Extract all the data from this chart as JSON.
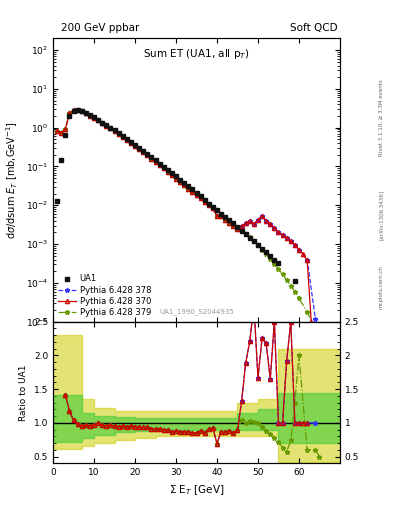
{
  "title_left": "200 GeV ppbar",
  "title_right": "Soft QCD",
  "plot_title": "Sum ET (UA1, all p_{T})",
  "ylabel_main": "dσ/dsum E_T [mb,GeV⁻¹]",
  "ylabel_ratio": "Ratio to UA1",
  "xlabel": "Σ E_T [GeV]",
  "rivet_label": "Rivet 3.1.10, ≥ 3.3M events",
  "arxiv_label": "[arXiv:1306.3436]",
  "mcplots_label": "mcplots.cern.ch",
  "analysis_label": "UA1_1990_S2044935",
  "background_color": "#ffffff",
  "ua1_x": [
    1,
    2,
    3,
    4,
    5,
    6,
    7,
    8,
    9,
    10,
    11,
    12,
    13,
    14,
    15,
    16,
    17,
    18,
    19,
    20,
    21,
    22,
    23,
    24,
    25,
    26,
    27,
    28,
    29,
    30,
    31,
    32,
    33,
    34,
    35,
    36,
    37,
    38,
    39,
    40,
    41,
    42,
    43,
    44,
    45,
    46,
    47,
    48,
    49,
    50,
    51,
    52,
    53,
    54,
    55,
    59,
    65
  ],
  "ua1_y": [
    0.013,
    0.15,
    0.65,
    2.0,
    2.7,
    2.85,
    2.75,
    2.45,
    2.15,
    1.85,
    1.58,
    1.36,
    1.16,
    1.0,
    0.86,
    0.73,
    0.61,
    0.51,
    0.42,
    0.355,
    0.298,
    0.25,
    0.209,
    0.174,
    0.144,
    0.119,
    0.099,
    0.082,
    0.068,
    0.056,
    0.046,
    0.038,
    0.031,
    0.026,
    0.021,
    0.017,
    0.014,
    0.011,
    0.009,
    0.0075,
    0.0061,
    0.005,
    0.0041,
    0.0034,
    0.0027,
    0.0022,
    0.0018,
    0.00145,
    0.00118,
    0.00095,
    0.00077,
    0.00062,
    0.0005,
    0.0004,
    0.00032,
    0.000115,
    1e-06
  ],
  "py370_x": [
    1,
    2,
    3,
    4,
    5,
    6,
    7,
    8,
    9,
    10,
    11,
    12,
    13,
    14,
    15,
    16,
    17,
    18,
    19,
    20,
    21,
    22,
    23,
    24,
    25,
    26,
    27,
    28,
    29,
    30,
    31,
    32,
    33,
    34,
    35,
    36,
    37,
    38,
    39,
    40,
    41,
    42,
    43,
    44,
    45,
    46,
    47,
    48,
    49,
    50,
    51,
    52,
    53,
    54,
    55,
    56,
    57,
    58,
    59,
    60,
    61,
    62,
    63
  ],
  "py370_y": [
    0.8,
    0.75,
    0.92,
    2.35,
    2.8,
    2.8,
    2.64,
    2.36,
    2.06,
    1.8,
    1.57,
    1.31,
    1.11,
    0.97,
    0.82,
    0.69,
    0.58,
    0.48,
    0.4,
    0.336,
    0.278,
    0.233,
    0.195,
    0.159,
    0.131,
    0.108,
    0.089,
    0.073,
    0.059,
    0.049,
    0.04,
    0.033,
    0.027,
    0.022,
    0.018,
    0.015,
    0.012,
    0.01,
    0.0083,
    0.0052,
    0.0053,
    0.0043,
    0.0036,
    0.0029,
    0.0024,
    0.0029,
    0.0034,
    0.004,
    0.0033,
    0.0042,
    0.0053,
    0.004,
    0.0033,
    0.0026,
    0.002,
    0.00175,
    0.00145,
    0.0012,
    0.00095,
    0.00072,
    0.00055,
    0.00038,
    1e-05
  ],
  "py378_x": [
    1,
    2,
    3,
    4,
    5,
    6,
    7,
    8,
    9,
    10,
    11,
    12,
    13,
    14,
    15,
    16,
    17,
    18,
    19,
    20,
    21,
    22,
    23,
    24,
    25,
    26,
    27,
    28,
    29,
    30,
    31,
    32,
    33,
    34,
    35,
    36,
    37,
    38,
    39,
    40,
    41,
    42,
    43,
    44,
    45,
    46,
    47,
    48,
    49,
    50,
    51,
    52,
    53,
    54,
    55,
    56,
    57,
    58,
    59,
    60,
    62,
    64
  ],
  "py378_y": [
    0.8,
    0.75,
    0.92,
    2.35,
    2.8,
    2.8,
    2.64,
    2.36,
    2.06,
    1.8,
    1.57,
    1.31,
    1.11,
    0.97,
    0.82,
    0.69,
    0.58,
    0.48,
    0.4,
    0.336,
    0.278,
    0.233,
    0.195,
    0.159,
    0.131,
    0.108,
    0.089,
    0.073,
    0.059,
    0.049,
    0.04,
    0.033,
    0.027,
    0.022,
    0.018,
    0.015,
    0.012,
    0.01,
    0.0083,
    0.0052,
    0.0053,
    0.0043,
    0.0036,
    0.0029,
    0.0024,
    0.0029,
    0.0034,
    0.004,
    0.0033,
    0.0042,
    0.0053,
    0.004,
    0.0033,
    0.0026,
    0.002,
    0.00175,
    0.00145,
    0.0012,
    0.00095,
    0.00072,
    0.0004,
    1.2e-05
  ],
  "py379_x": [
    1,
    2,
    3,
    4,
    5,
    6,
    7,
    8,
    9,
    10,
    11,
    12,
    13,
    14,
    15,
    16,
    17,
    18,
    19,
    20,
    21,
    22,
    23,
    24,
    25,
    26,
    27,
    28,
    29,
    30,
    31,
    32,
    33,
    34,
    35,
    36,
    37,
    38,
    39,
    40,
    41,
    42,
    43,
    44,
    45,
    46,
    47,
    48,
    49,
    50,
    51,
    52,
    53,
    54,
    55,
    56,
    57,
    58,
    59,
    60,
    62,
    64,
    65
  ],
  "py379_y": [
    0.8,
    0.75,
    0.92,
    2.35,
    2.8,
    2.8,
    2.64,
    2.36,
    2.06,
    1.8,
    1.57,
    1.31,
    1.11,
    0.97,
    0.82,
    0.69,
    0.58,
    0.48,
    0.4,
    0.336,
    0.278,
    0.233,
    0.195,
    0.159,
    0.131,
    0.108,
    0.089,
    0.073,
    0.059,
    0.049,
    0.04,
    0.033,
    0.027,
    0.022,
    0.018,
    0.015,
    0.012,
    0.01,
    0.0083,
    0.0052,
    0.0053,
    0.0043,
    0.0036,
    0.0029,
    0.0024,
    0.0022,
    0.0018,
    0.0015,
    0.0012,
    0.00095,
    0.00072,
    0.00055,
    0.00042,
    0.00031,
    0.00023,
    0.000165,
    0.000118,
    8.5e-05,
    6e-05,
    4e-05,
    1.8e-05,
    6e-06,
    2e-07
  ],
  "ratio_x_370": [
    3,
    4,
    5,
    6,
    7,
    8,
    9,
    10,
    11,
    12,
    13,
    14,
    15,
    16,
    17,
    18,
    19,
    20,
    21,
    22,
    23,
    24,
    25,
    26,
    27,
    28,
    29,
    30,
    31,
    32,
    33,
    34,
    35,
    36,
    37,
    38,
    39,
    40,
    41,
    42,
    43,
    44,
    45,
    46,
    47,
    48,
    49,
    50,
    51,
    52,
    53,
    54,
    55,
    56,
    57,
    58,
    59,
    60,
    61,
    62
  ],
  "ratio_y_370": [
    1.42,
    1.175,
    1.037,
    0.982,
    0.96,
    0.963,
    0.958,
    0.973,
    0.994,
    0.963,
    0.957,
    0.97,
    0.953,
    0.945,
    0.951,
    0.941,
    0.952,
    0.946,
    0.932,
    0.932,
    0.933,
    0.914,
    0.91,
    0.908,
    0.899,
    0.89,
    0.868,
    0.875,
    0.87,
    0.868,
    0.871,
    0.846,
    0.857,
    0.882,
    0.857,
    0.909,
    0.922,
    0.693,
    0.869,
    0.86,
    0.878,
    0.853,
    0.889,
    1.318,
    1.889,
    2.207,
    2.797,
    1.667,
    2.253,
    2.179,
    1.65,
    2.5,
    1.0,
    1.0,
    1.917,
    2.5,
    1.0,
    1.0,
    1.0,
    1.0
  ],
  "ratio_x_378": [
    3,
    4,
    5,
    6,
    7,
    8,
    9,
    10,
    11,
    12,
    13,
    14,
    15,
    16,
    17,
    18,
    19,
    20,
    21,
    22,
    23,
    24,
    25,
    26,
    27,
    28,
    29,
    30,
    31,
    32,
    33,
    34,
    35,
    36,
    37,
    38,
    39,
    40,
    41,
    42,
    43,
    44,
    45,
    46,
    47,
    48,
    49,
    50,
    51,
    52,
    53,
    54,
    55,
    56,
    57,
    58,
    59,
    60,
    62,
    64
  ],
  "ratio_y_378": [
    1.42,
    1.175,
    1.037,
    0.982,
    0.96,
    0.963,
    0.958,
    0.973,
    0.994,
    0.963,
    0.957,
    0.97,
    0.953,
    0.945,
    0.951,
    0.941,
    0.952,
    0.946,
    0.932,
    0.932,
    0.933,
    0.914,
    0.91,
    0.908,
    0.899,
    0.89,
    0.868,
    0.875,
    0.87,
    0.868,
    0.871,
    0.846,
    0.857,
    0.882,
    0.857,
    0.909,
    0.922,
    0.693,
    0.869,
    0.86,
    0.878,
    0.853,
    0.889,
    1.318,
    1.889,
    2.207,
    2.797,
    1.667,
    2.253,
    2.179,
    1.65,
    2.5,
    1.0,
    1.0,
    1.917,
    2.5,
    1.0,
    1.0,
    1.0,
    1.0
  ],
  "ratio_x_379": [
    3,
    4,
    5,
    6,
    7,
    8,
    9,
    10,
    11,
    12,
    13,
    14,
    15,
    16,
    17,
    18,
    19,
    20,
    21,
    22,
    23,
    24,
    25,
    26,
    27,
    28,
    29,
    30,
    31,
    32,
    33,
    34,
    35,
    36,
    37,
    38,
    39,
    40,
    41,
    42,
    43,
    44,
    45,
    46,
    47,
    48,
    49,
    50,
    51,
    52,
    53,
    54,
    55,
    56,
    57,
    58,
    59,
    60,
    62,
    64,
    65
  ],
  "ratio_y_379": [
    1.42,
    1.175,
    1.037,
    0.982,
    0.96,
    0.963,
    0.958,
    0.973,
    0.994,
    0.963,
    0.957,
    0.97,
    0.953,
    0.945,
    0.951,
    0.941,
    0.952,
    0.946,
    0.932,
    0.932,
    0.933,
    0.914,
    0.91,
    0.908,
    0.899,
    0.89,
    0.868,
    0.875,
    0.87,
    0.868,
    0.871,
    0.846,
    0.857,
    0.882,
    0.857,
    0.909,
    0.922,
    0.693,
    0.869,
    0.86,
    0.878,
    0.853,
    0.889,
    1.044,
    1.0,
    1.034,
    1.017,
    1.0,
    0.937,
    0.887,
    0.841,
    0.775,
    0.719,
    0.635,
    0.575,
    0.739,
    1.3,
    2.0,
    0.6,
    0.6,
    0.5
  ],
  "band_x": [
    0,
    2,
    4,
    7,
    10,
    15,
    20,
    25,
    30,
    35,
    40,
    45,
    50,
    55,
    60,
    65,
    70
  ],
  "band_yellow_lo": [
    0.62,
    0.62,
    0.62,
    0.65,
    0.7,
    0.75,
    0.78,
    0.8,
    0.8,
    0.8,
    0.8,
    0.8,
    0.8,
    0.42,
    0.42,
    0.42,
    0.42
  ],
  "band_yellow_hi": [
    2.3,
    2.3,
    2.3,
    1.35,
    1.22,
    1.18,
    1.18,
    1.18,
    1.18,
    1.18,
    1.18,
    1.3,
    1.35,
    2.1,
    2.1,
    2.1,
    2.1
  ],
  "band_green_lo": [
    0.72,
    0.72,
    0.72,
    0.78,
    0.82,
    0.87,
    0.88,
    0.9,
    0.9,
    0.9,
    0.9,
    0.9,
    0.9,
    0.7,
    0.7,
    0.7,
    0.7
  ],
  "band_green_hi": [
    1.42,
    1.42,
    1.42,
    1.15,
    1.1,
    1.08,
    1.07,
    1.07,
    1.07,
    1.07,
    1.07,
    1.15,
    1.2,
    1.45,
    1.45,
    1.45,
    1.45
  ],
  "color_370": "#cc0000",
  "color_378": "#3333ff",
  "color_379": "#669900",
  "color_ua1": "#111111",
  "color_band_green": "#33cc33",
  "color_band_yellow": "#cccc00",
  "xlim": [
    0,
    70
  ],
  "ylim_main": [
    1e-05,
    200
  ],
  "ylim_ratio": [
    0.4,
    2.5
  ],
  "xticks": [
    0,
    10,
    20,
    30,
    40,
    50,
    60
  ]
}
